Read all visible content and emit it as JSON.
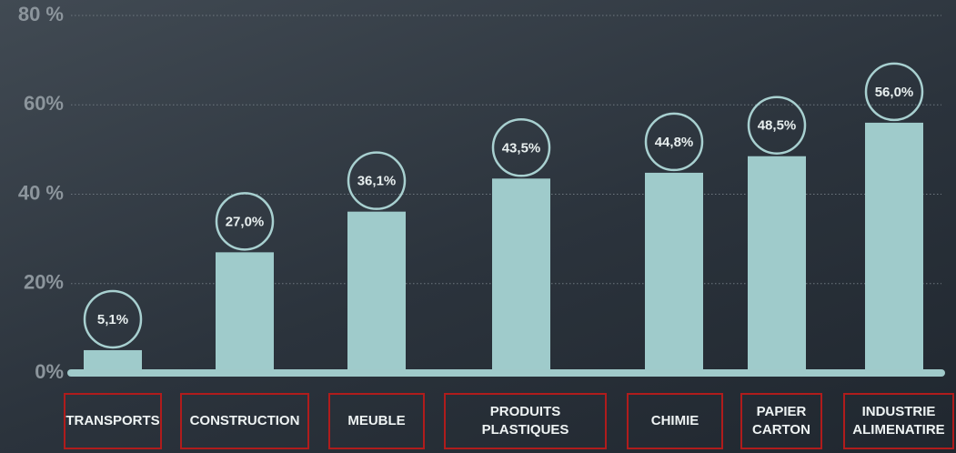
{
  "chart_data": {
    "type": "bar",
    "categories": [
      "TRANSPORTS",
      "CONSTRUCTION",
      "MEUBLE",
      "PRODUITS PLASTIQUES",
      "CHIMIE",
      "PAPIER CARTON",
      "INDUSTRIE ALIMENATIRE"
    ],
    "values": [
      5.1,
      27.0,
      36.1,
      43.5,
      44.8,
      48.5,
      56.0
    ],
    "value_labels": [
      "5,1%",
      "27,0%",
      "36,1%",
      "43,5%",
      "44,8%",
      "48,5%",
      "56,0%"
    ],
    "color": "#9fcbcb",
    "ylim": [
      0,
      80
    ],
    "yticks": [
      {
        "value": 0,
        "label": "0%"
      },
      {
        "value": 20,
        "label": "20%"
      },
      {
        "value": 40,
        "label": "40 %"
      },
      {
        "value": 60,
        "label": "60%"
      },
      {
        "value": 80,
        "label": "80 %"
      }
    ],
    "grid": true
  }
}
